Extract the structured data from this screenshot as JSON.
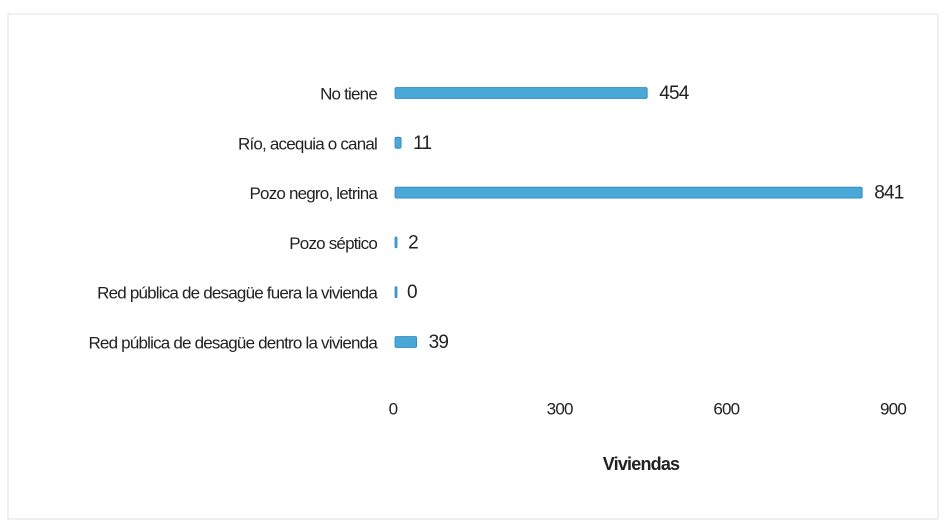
{
  "chart_data": {
    "type": "bar",
    "orientation": "horizontal",
    "categories": [
      "No tiene",
      "Río, acequia o canal",
      "Pozo negro, letrina",
      "Pozo séptico",
      "Red pública de desagüe fuera la vivienda",
      "Red pública de desagüe dentro la vivienda"
    ],
    "values": [
      454,
      11,
      841,
      2,
      0,
      39
    ],
    "color": "#4aa8d8",
    "xlim": [
      0,
      900
    ],
    "xticks": [
      0,
      300,
      600,
      900
    ],
    "x_label": "Viviendas",
    "grid": false
  }
}
